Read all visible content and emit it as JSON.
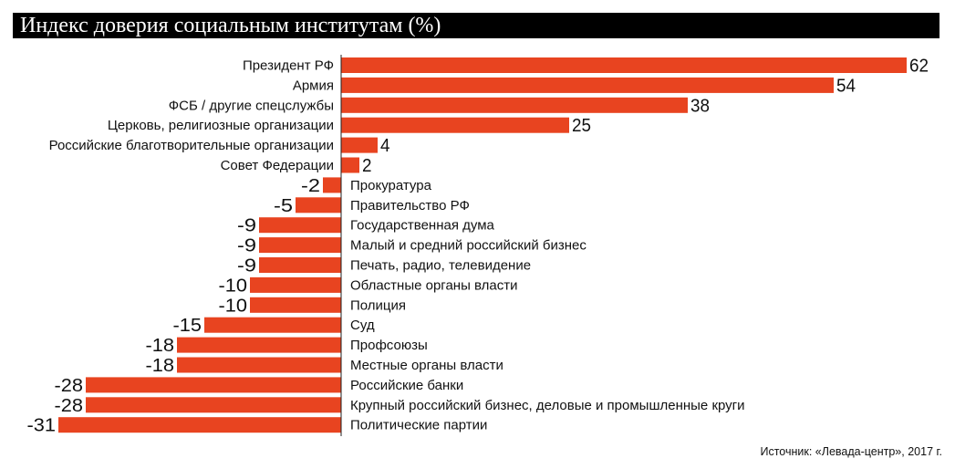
{
  "chart_data": {
    "type": "bar",
    "orientation": "horizontal",
    "title": "Индекс доверия социальным институтам (%)",
    "categories": [
      "Президент РФ",
      "Армия",
      "ФСБ / другие спецслужбы",
      "Церковь, религиозные организации",
      "Российские благотворительные организации",
      "Совет Федерации",
      "Прокуратура",
      "Правительство РФ",
      "Государственная дума",
      "Малый и средний российский бизнес",
      "Печать, радио, телевидение",
      "Областные органы власти",
      "Полиция",
      "Суд",
      "Профсоюзы",
      "Местные органы власти",
      "Российские банки",
      "Крупный российский бизнес, деловые и промышленные круги",
      "Политические партии"
    ],
    "values": [
      62,
      54,
      38,
      25,
      4,
      2,
      -2,
      -5,
      -9,
      -9,
      -9,
      -10,
      -10,
      -15,
      -18,
      -18,
      -28,
      -28,
      -31
    ],
    "xlim": [
      -31,
      62
    ],
    "grid": false,
    "legend": "none",
    "bar_color": "#e84420",
    "source": "Источник: «Левада-центр», 2017 г."
  }
}
